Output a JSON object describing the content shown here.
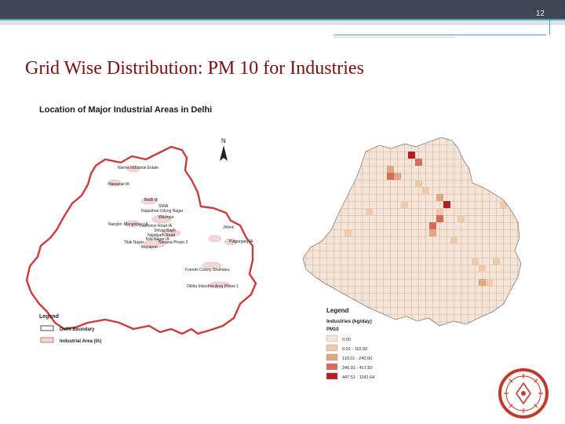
{
  "slide": {
    "number": "12",
    "title": "Grid Wise Distribution: PM 10 for Industries"
  },
  "left_map": {
    "title": "Location of Major Industrial Areas in Delhi",
    "north": "N",
    "places": [
      "Narela Industrial Estate",
      "Nawanali IA",
      "Badli IA",
      "SMIA",
      "Rajasthan Udyog Nagar",
      "Wazirpur",
      "Nangloi",
      "Mangolpuri IA",
      "Lawrence Road IA",
      "Shivaji Bagh",
      "Najafgarh Road",
      "Kirti Nagar IA",
      "Tilak Nagar",
      "Mayapuri",
      "Naraina Phase 2",
      "Jhilmil",
      "Patparganj IA",
      "Friends Colony Shahdara",
      "Okhla Industrial Area Phase 1"
    ],
    "legend": {
      "title": "Legend",
      "items": [
        {
          "label": "Delhi Boundary",
          "color": "#ffffff"
        },
        {
          "label": "Industrial Area (IA)",
          "color": "#f5d6d6"
        }
      ]
    }
  },
  "right_map": {
    "legend": {
      "title": "Legend",
      "subtitle": "Industries (kg/day)",
      "pollutant": "PM10",
      "classes": [
        {
          "label": "0.00",
          "color": "#f6e5d6"
        },
        {
          "label": "0.01 - 110.00",
          "color": "#eecaad"
        },
        {
          "label": "110.01 - 240.00",
          "color": "#e3a584"
        },
        {
          "label": "240.01 - 417.50",
          "color": "#d46d55"
        },
        {
          "label": "447.51 - 1181.64",
          "color": "#b91c1c"
        }
      ]
    }
  },
  "logo": {
    "name": "institution-logo",
    "color": "#c0392b"
  }
}
